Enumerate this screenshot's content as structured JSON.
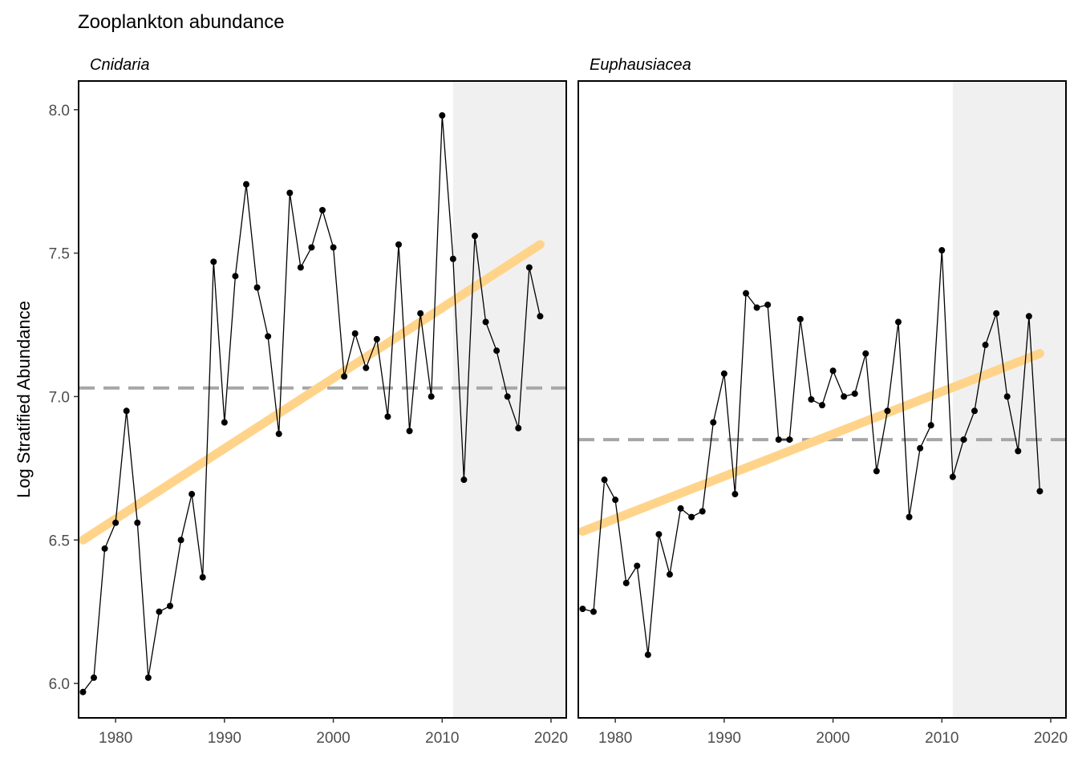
{
  "title": "Zooplankton abundance",
  "ylabel": "Log Stratified Abundance",
  "colors": {
    "trend": "#FFD48A",
    "reference_line": "#A6A6A6",
    "recent_shade": "#F0F0F0",
    "series": "#000000"
  },
  "chart_data": [
    {
      "type": "line",
      "panel_title": "Cnidaria",
      "xlim": [
        1976.6,
        2021.4
      ],
      "ylim": [
        5.88,
        8.1
      ],
      "x_ticks": [
        1980,
        1990,
        2000,
        2010,
        2020
      ],
      "y_ticks": [
        6.0,
        6.5,
        7.0,
        7.5,
        8.0
      ],
      "y_tick_labels": [
        "6.0",
        "6.5",
        "7.0",
        "7.5",
        "8.0"
      ],
      "shaded_x_range": [
        2011,
        2021.4
      ],
      "reference_y": 7.03,
      "trend": {
        "x": [
          1977,
          2019
        ],
        "y": [
          6.5,
          7.53
        ]
      },
      "x": [
        1977,
        1978,
        1979,
        1980,
        1981,
        1982,
        1983,
        1984,
        1985,
        1986,
        1987,
        1988,
        1989,
        1990,
        1991,
        1992,
        1993,
        1994,
        1995,
        1996,
        1997,
        1998,
        1999,
        2000,
        2001,
        2002,
        2003,
        2004,
        2005,
        2006,
        2007,
        2008,
        2009,
        2010,
        2011,
        2012,
        2013,
        2014,
        2015,
        2016,
        2017,
        2018,
        2019
      ],
      "y": [
        5.97,
        6.02,
        6.47,
        6.56,
        6.95,
        6.56,
        6.02,
        6.25,
        6.27,
        6.5,
        6.66,
        6.37,
        7.47,
        6.91,
        7.42,
        7.74,
        7.38,
        7.21,
        6.87,
        7.71,
        7.45,
        7.52,
        7.65,
        7.52,
        7.07,
        7.22,
        7.1,
        7.2,
        6.93,
        7.53,
        6.88,
        7.29,
        7.0,
        7.98,
        7.48,
        6.71,
        7.56,
        7.26,
        7.16,
        7.0,
        6.89,
        7.45,
        7.28
      ]
    },
    {
      "type": "line",
      "panel_title": "Euphausiacea",
      "xlim": [
        1976.6,
        2021.4
      ],
      "ylim": [
        5.88,
        8.1
      ],
      "x_ticks": [
        1980,
        1990,
        2000,
        2010,
        2020
      ],
      "shaded_x_range": [
        2011,
        2021.4
      ],
      "reference_y": 6.85,
      "trend": {
        "x": [
          1977,
          2019
        ],
        "y": [
          6.53,
          7.15
        ]
      },
      "x": [
        1977,
        1978,
        1979,
        1980,
        1981,
        1982,
        1983,
        1984,
        1985,
        1986,
        1987,
        1988,
        1989,
        1990,
        1991,
        1992,
        1993,
        1994,
        1995,
        1996,
        1997,
        1998,
        1999,
        2000,
        2001,
        2002,
        2003,
        2004,
        2005,
        2006,
        2007,
        2008,
        2009,
        2010,
        2011,
        2012,
        2013,
        2014,
        2015,
        2016,
        2017,
        2018,
        2019
      ],
      "y": [
        6.26,
        6.25,
        6.71,
        6.64,
        6.35,
        6.41,
        6.1,
        6.52,
        6.38,
        6.61,
        6.58,
        6.6,
        6.91,
        7.08,
        6.66,
        7.36,
        7.31,
        7.32,
        6.85,
        6.85,
        7.27,
        6.99,
        6.97,
        7.09,
        7.0,
        7.01,
        7.15,
        6.74,
        6.95,
        7.26,
        6.58,
        6.82,
        6.9,
        7.51,
        6.72,
        6.85,
        6.95,
        7.18,
        7.29,
        7.0,
        6.81,
        7.28,
        6.67
      ]
    }
  ]
}
